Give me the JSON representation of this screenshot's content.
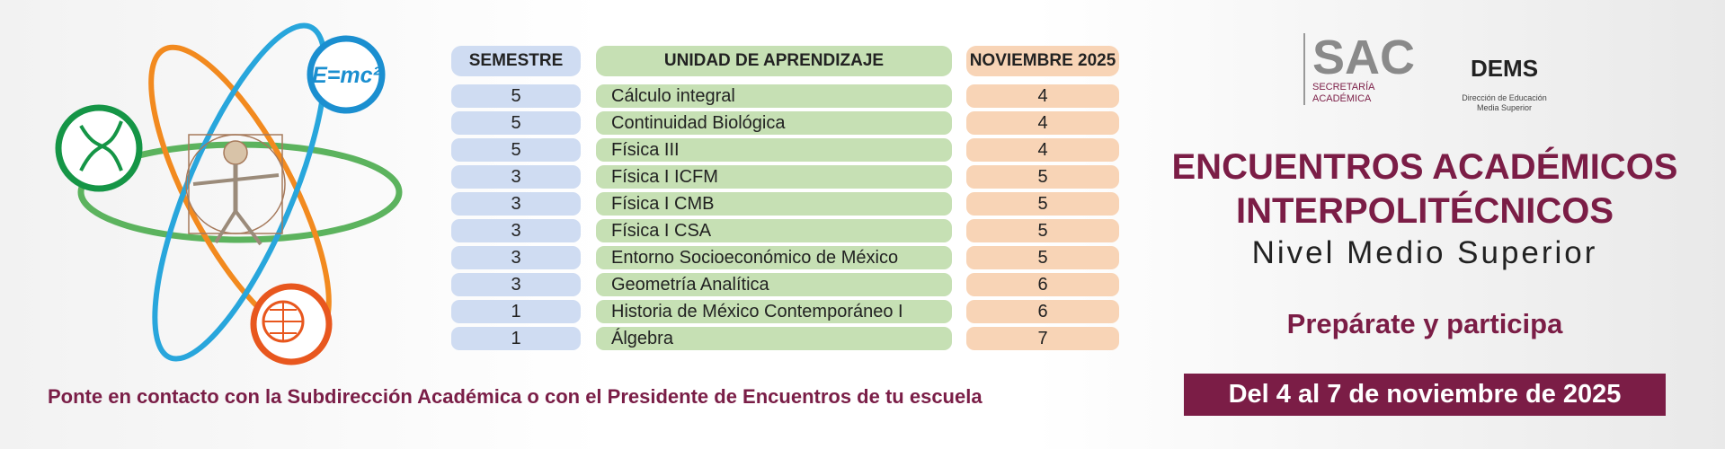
{
  "illustration": {
    "formula": "E=mc²"
  },
  "table": {
    "headers": [
      "SEMESTRE",
      "UNIDAD DE APRENDIZAJE",
      "NOVIEMBRE 2025"
    ],
    "rows": [
      [
        5,
        "Cálculo integral",
        4
      ],
      [
        5,
        "Continuidad Biológica",
        4
      ],
      [
        5,
        "Física III",
        4
      ],
      [
        3,
        "Física I ICFM",
        5
      ],
      [
        3,
        "Física I CMB",
        5
      ],
      [
        3,
        "Física I CSA",
        5
      ],
      [
        3,
        "Entorno Socioeconómico de México",
        5
      ],
      [
        3,
        "Geometría Analítica",
        6
      ],
      [
        1,
        "Historia de México Contemporáneo I",
        6
      ],
      [
        1,
        "Álgebra",
        7
      ]
    ]
  },
  "footer": "Ponte en contacto con la Subdirección Académica o con el Presidente de Encuentros de tu escuela",
  "logos": {
    "sac": {
      "acronym": "SAC",
      "lines": [
        "SECRETARÍA",
        "ACADÉMICA"
      ]
    },
    "dems": {
      "acronym": "DEMS",
      "lines": [
        "Dirección de Educación",
        "Media Superior"
      ]
    }
  },
  "event": {
    "title_lines": [
      "ENCUENTROS ACADÉMICOS",
      "INTERPOLITÉCNICOS"
    ],
    "subtitle": "Nivel Medio Superior",
    "call_to_action": "Prepárate y participa",
    "dates": "Del 4 al 7 de noviembre de 2025"
  }
}
